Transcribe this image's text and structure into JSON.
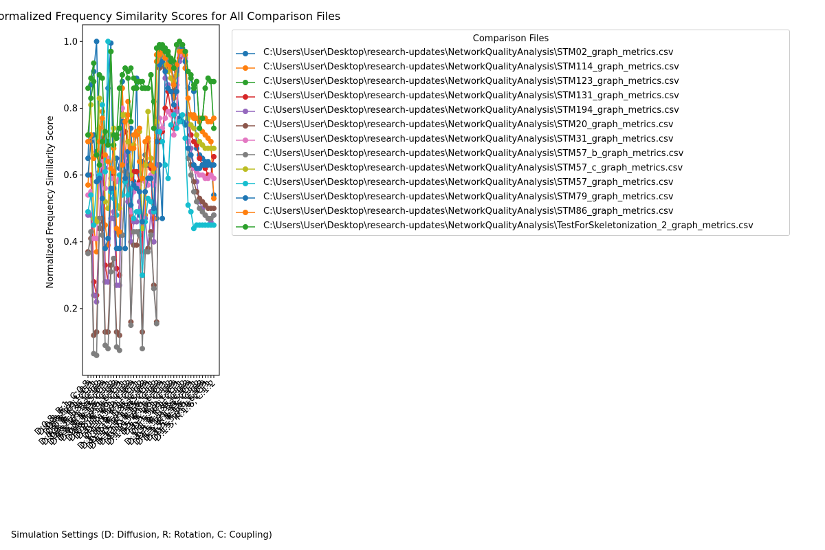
{
  "chart_data": {
    "type": "line",
    "title": "Normalized Frequency Similarity Scores for All Comparison Files",
    "xlabel": "Simulation Settings (D: Diffusion, R: Rotation, C: Coupling)",
    "ylabel": "Normalized Frequency Similarity Score",
    "ylim": [
      0.0,
      1.05
    ],
    "yticks": [
      "0.2",
      "0.4",
      "0.6",
      "0.8",
      "1.0"
    ],
    "grid": false,
    "legend_title": "Comparison Files",
    "legend_position": "right",
    "categories": [
      "D:0.8, R:1, C:0.8",
      "D:0.8, R:1, C:0.9",
      "D:0.8, R:1, C:1",
      "D:0.8, R:1, C:1.1",
      "D:0.8, R:1, C:1.2",
      "D:0.8, R:1.35, C:0.8",
      "D:0.8, R:1.35, C:0.9",
      "D:0.8, R:1.35, C:1",
      "D:0.8, R:1.35, C:1.1",
      "D:0.8, R:1.35, C:1.2",
      "D:0.8, R:1.6, C:0.8",
      "D:0.8, R:1.6, C:0.9",
      "D:0.8, R:1.6, C:1",
      "D:0.8, R:1.6, C:1.1",
      "D:0.8, R:1.6, C:1.2",
      "D:1.15, R:1, C:0.8",
      "D:1.15, R:1, C:0.9",
      "D:1.15, R:1, C:1",
      "D:1.15, R:1, C:1.1",
      "D:1.15, R:1, C:1.2",
      "D:1.15, R:1.35, C:0.8",
      "D:1.15, R:1.35, C:0.9",
      "D:1.15, R:1.35, C:1",
      "D:1.15, R:1.35, C:1.1",
      "D:1.15, R:1.35, C:1.2",
      "D:1.15, R:1.6, C:0.8",
      "D:1.15, R:1.6, C:0.9",
      "D:1.15, R:1.6, C:1",
      "D:1.15, R:1.6, C:1.1",
      "D:1.15, R:1.6, C:1.2",
      "D:1.5, R:1, C:0.8",
      "D:1.5, R:1, C:0.9",
      "D:1.5, R:1, C:1",
      "D:1.5, R:1, C:1.1",
      "D:1.5, R:1, C:1.2",
      "D:1.5, R:1.35, C:0.8",
      "D:1.5, R:1.35, C:0.9",
      "D:1.5, R:1.35, C:1",
      "D:1.5, R:1.35, C:1.1",
      "D:1.5, R:1.35, C:1.2",
      "D:1.5, R:1.6, C:0.8",
      "D:1.5, R:1.6, C:0.9",
      "D:1.5, R:1.6, C:1",
      "D:1.5, R:1.6, C:1.1",
      "D:1.5, R:1.6, C:1.2"
    ],
    "series": [
      {
        "name": "C:\\Users\\User\\Desktop\\research-updates\\NetworkQualityAnalysis\\STM02_graph_metrics.csv",
        "color": "#1f77b4",
        "values": [
          0.65,
          0.87,
          0.91,
          1.0,
          0.61,
          0.44,
          0.62,
          0.86,
          0.995,
          0.47,
          0.65,
          0.62,
          0.88,
          0.38,
          0.66,
          0.74,
          0.58,
          0.89,
          0.48,
          0.64,
          0.66,
          0.63,
          0.65,
          0.61,
          0.47,
          0.63,
          0.47,
          0.92,
          0.86,
          0.85,
          0.84,
          0.87,
          0.77,
          0.76,
          0.75,
          0.86,
          0.89,
          0.85,
          0.68,
          0.66,
          0.65,
          0.64,
          0.64,
          0.63,
          0.54
        ]
      },
      {
        "name": "C:\\Users\\User\\Desktop\\research-updates\\NetworkQualityAnalysis\\STM114_graph_metrics.csv",
        "color": "#ff7f0e",
        "values": [
          0.57,
          0.72,
          0.45,
          0.37,
          0.74,
          0.79,
          0.45,
          0.39,
          0.62,
          0.68,
          0.43,
          0.42,
          0.86,
          0.64,
          0.82,
          0.59,
          0.72,
          0.73,
          0.64,
          0.44,
          0.48,
          0.71,
          0.63,
          0.47,
          0.96,
          0.97,
          0.96,
          0.93,
          0.91,
          0.89,
          0.83,
          0.91,
          0.95,
          0.97,
          0.92,
          0.83,
          0.78,
          0.77,
          0.77,
          0.76,
          0.73,
          0.72,
          0.71,
          0.7,
          0.53
        ]
      },
      {
        "name": "C:\\Users\\User\\Desktop\\research-updates\\NetworkQualityAnalysis\\STM123_graph_metrics.csv",
        "color": "#2ca02c",
        "values": [
          0.86,
          0.89,
          0.935,
          0.67,
          0.9,
          0.89,
          0.69,
          0.7,
          0.97,
          0.69,
          0.72,
          0.86,
          0.9,
          0.92,
          0.91,
          0.92,
          0.89,
          0.86,
          0.88,
          0.88,
          0.86,
          0.86,
          0.9,
          0.82,
          0.75,
          0.99,
          0.99,
          0.98,
          0.97,
          0.95,
          0.94,
          0.99,
          1.0,
          0.99,
          0.97,
          0.91,
          0.9,
          0.86,
          0.88,
          0.74,
          0.77,
          0.86,
          0.89,
          0.88,
          0.74
        ]
      },
      {
        "name": "C:\\Users\\User\\Desktop\\research-updates\\NetworkQualityAnalysis\\STM131_graph_metrics.csv",
        "color": "#d62728",
        "values": [
          0.6,
          0.6,
          0.28,
          0.24,
          0.44,
          0.71,
          0.33,
          0.28,
          0.59,
          0.6,
          0.32,
          0.3,
          0.72,
          0.73,
          0.7,
          0.4,
          0.61,
          0.61,
          0.58,
          0.37,
          0.63,
          0.7,
          0.62,
          0.4,
          0.71,
          0.7,
          0.73,
          0.8,
          0.85,
          0.79,
          0.74,
          0.8,
          0.95,
          0.96,
          0.94,
          0.78,
          0.72,
          0.7,
          0.69,
          0.65,
          0.63,
          0.62,
          0.6,
          0.6,
          0.655
        ]
      },
      {
        "name": "C:\\Users\\User\\Desktop\\research-updates\\NetworkQualityAnalysis\\STM194_graph_metrics.csv",
        "color": "#9467bd",
        "values": [
          0.48,
          0.48,
          0.24,
          0.22,
          0.44,
          0.63,
          0.28,
          0.28,
          0.47,
          0.49,
          0.27,
          0.27,
          0.65,
          0.66,
          0.52,
          0.4,
          0.46,
          0.46,
          0.52,
          0.3,
          0.47,
          0.38,
          0.49,
          0.4,
          0.63,
          0.94,
          0.93,
          0.89,
          0.87,
          0.85,
          0.78,
          0.79,
          0.94,
          0.96,
          0.95,
          0.77,
          0.68,
          0.63,
          0.58,
          0.52,
          0.5,
          0.48,
          0.47,
          0.46,
          0.48
        ]
      },
      {
        "name": "C:\\Users\\User\\Desktop\\research-updates\\NetworkQualityAnalysis\\STM20_graph_metrics.csv",
        "color": "#8c564b",
        "values": [
          0.37,
          0.41,
          0.12,
          0.13,
          0.44,
          0.47,
          0.13,
          0.13,
          0.33,
          0.35,
          0.13,
          0.12,
          0.42,
          0.58,
          0.6,
          0.16,
          0.39,
          0.39,
          0.43,
          0.13,
          0.37,
          0.38,
          0.43,
          0.27,
          0.16,
          0.92,
          0.93,
          0.92,
          0.91,
          0.89,
          0.85,
          0.9,
          0.98,
          0.99,
          0.97,
          0.7,
          0.63,
          0.58,
          0.55,
          0.53,
          0.52,
          0.51,
          0.5,
          0.5,
          0.5
        ]
      },
      {
        "name": "C:\\Users\\User\\Desktop\\research-updates\\NetworkQualityAnalysis\\STM31_graph_metrics.csv",
        "color": "#e377c2",
        "values": [
          0.54,
          0.55,
          0.41,
          0.41,
          0.6,
          0.64,
          0.56,
          0.65,
          0.59,
          0.59,
          0.58,
          0.59,
          0.8,
          0.64,
          0.59,
          0.49,
          0.55,
          0.57,
          0.57,
          0.3,
          0.58,
          0.57,
          0.6,
          0.57,
          0.72,
          0.77,
          0.74,
          0.77,
          0.79,
          0.78,
          0.72,
          0.75,
          0.96,
          0.97,
          0.95,
          0.7,
          0.66,
          0.62,
          0.61,
          0.6,
          0.6,
          0.59,
          0.59,
          0.6,
          0.59
        ]
      },
      {
        "name": "C:\\Users\\User\\Desktop\\research-updates\\NetworkQualityAnalysis\\STM57_b_graph_metrics.csv",
        "color": "#7f7f7f",
        "values": [
          0.365,
          0.43,
          0.065,
          0.06,
          0.47,
          0.42,
          0.09,
          0.08,
          0.31,
          0.35,
          0.085,
          0.075,
          0.42,
          0.61,
          0.6,
          0.15,
          0.43,
          0.43,
          0.42,
          0.08,
          0.37,
          0.37,
          0.42,
          0.26,
          0.155,
          0.95,
          0.96,
          0.95,
          0.94,
          0.93,
          0.89,
          0.91,
          0.98,
          0.99,
          0.97,
          0.65,
          0.6,
          0.55,
          0.52,
          0.5,
          0.49,
          0.48,
          0.47,
          0.47,
          0.48
        ]
      },
      {
        "name": "C:\\Users\\User\\Desktop\\research-updates\\NetworkQualityAnalysis\\STM57_c_graph_metrics.csv",
        "color": "#bcbd22",
        "values": [
          0.72,
          0.81,
          0.47,
          0.46,
          0.83,
          0.81,
          0.52,
          0.5,
          0.72,
          0.74,
          0.51,
          0.5,
          0.78,
          0.78,
          0.7,
          0.6,
          0.69,
          0.72,
          0.73,
          0.44,
          0.63,
          0.79,
          0.65,
          0.61,
          0.76,
          0.96,
          0.97,
          0.93,
          0.91,
          0.89,
          0.88,
          0.9,
          0.97,
          0.98,
          0.96,
          0.77,
          0.75,
          0.74,
          0.72,
          0.7,
          0.69,
          0.68,
          0.68,
          0.68,
          0.68
        ]
      },
      {
        "name": "C:\\Users\\User\\Desktop\\research-updates\\NetworkQualityAnalysis\\STM57_graph_metrics.csv",
        "color": "#17becf",
        "values": [
          0.49,
          0.54,
          0.45,
          0.58,
          0.6,
          0.81,
          0.61,
          1.0,
          0.55,
          0.53,
          0.48,
          0.6,
          0.54,
          0.58,
          0.54,
          0.56,
          0.47,
          0.49,
          0.49,
          0.3,
          0.46,
          0.53,
          0.52,
          0.49,
          0.73,
          0.73,
          0.7,
          0.63,
          0.59,
          0.75,
          0.78,
          0.74,
          0.76,
          0.78,
          0.71,
          0.51,
          0.49,
          0.44,
          0.45,
          0.45,
          0.45,
          0.45,
          0.45,
          0.45,
          0.45
        ]
      },
      {
        "name": "C:\\Users\\User\\Desktop\\research-updates\\NetworkQualityAnalysis\\STM79_graph_metrics.csv",
        "color": "#1f77b4",
        "values": [
          0.6,
          0.7,
          0.72,
          0.58,
          0.59,
          0.53,
          0.38,
          0.41,
          0.56,
          0.56,
          0.38,
          0.38,
          0.76,
          0.59,
          0.67,
          0.51,
          0.57,
          0.56,
          0.55,
          0.46,
          0.55,
          0.59,
          0.59,
          0.5,
          0.7,
          0.93,
          0.94,
          0.91,
          0.86,
          0.85,
          0.81,
          0.85,
          0.97,
          0.98,
          0.94,
          0.68,
          0.66,
          0.63,
          0.62,
          0.62,
          0.63,
          0.63,
          0.63,
          0.63,
          0.63
        ]
      },
      {
        "name": "C:\\Users\\User\\Desktop\\research-updates\\NetworkQualityAnalysis\\STM86_graph_metrics.csv",
        "color": "#ff7f0e",
        "values": [
          0.7,
          0.72,
          0.65,
          0.66,
          0.7,
          0.77,
          0.66,
          0.64,
          0.62,
          0.61,
          0.44,
          0.43,
          0.63,
          0.76,
          0.78,
          0.68,
          0.68,
          0.72,
          0.74,
          0.59,
          0.7,
          0.71,
          0.63,
          0.62,
          0.94,
          0.96,
          0.97,
          0.95,
          0.93,
          0.92,
          0.87,
          0.93,
          0.97,
          0.97,
          0.96,
          0.83,
          0.78,
          0.78,
          0.77,
          0.77,
          0.77,
          0.77,
          0.76,
          0.76,
          0.77
        ]
      },
      {
        "name": "C:\\Users\\User\\Desktop\\research-updates\\NetworkQualityAnalysis\\TestForSkeletonization_2_graph_metrics.csv",
        "color": "#2ca02c",
        "values": [
          0.72,
          0.83,
          0.88,
          0.66,
          0.63,
          0.7,
          0.73,
          0.69,
          0.97,
          0.72,
          0.71,
          0.74,
          0.9,
          0.92,
          0.89,
          0.76,
          0.86,
          0.88,
          0.88,
          0.86,
          0.86,
          0.86,
          0.9,
          0.74,
          0.98,
          0.99,
          0.98,
          0.97,
          0.96,
          0.94,
          0.92,
          0.99,
          1.0,
          0.99,
          0.97,
          0.91,
          0.89,
          0.87,
          0.88,
          0.74,
          0.77,
          0.86,
          0.89,
          0.88,
          0.88
        ]
      }
    ]
  }
}
